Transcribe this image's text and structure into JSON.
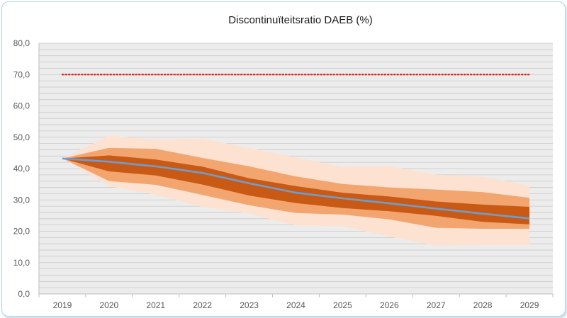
{
  "chart_data": {
    "type": "area",
    "title": "Discontinuïteitsratio DAEB (%)",
    "xlabel": "",
    "ylabel": "",
    "x": [
      "2019",
      "2020",
      "2021",
      "2022",
      "2023",
      "2024",
      "2025",
      "2026",
      "2027",
      "2028",
      "2029"
    ],
    "ylim": [
      0,
      80
    ],
    "yticks": [
      0,
      10,
      20,
      30,
      40,
      50,
      60,
      70,
      80
    ],
    "ytick_labels": [
      "0,0",
      "10,0",
      "20,0",
      "30,0",
      "40,0",
      "50,0",
      "60,0",
      "70,0",
      "80,0"
    ],
    "grid": true,
    "bands": [
      {
        "color": "#fde2d2",
        "upper": [
          43.2,
          50.5,
          49.2,
          49.6,
          46.5,
          43.6,
          40.5,
          40.8,
          38.0,
          37.4,
          34.5
        ],
        "lower": [
          43.2,
          34.4,
          31.6,
          27.8,
          25.6,
          21.8,
          21.6,
          18.3,
          15.4,
          15.6,
          15.6
        ]
      },
      {
        "color": "#f3a56f",
        "upper": [
          43.2,
          46.6,
          46.3,
          43.4,
          40.7,
          37.5,
          35.1,
          34.0,
          33.3,
          32.5,
          30.7
        ],
        "lower": [
          43.2,
          36.0,
          34.8,
          31.6,
          28.3,
          25.8,
          25.3,
          23.8,
          21.1,
          20.8,
          20.8
        ]
      },
      {
        "color": "#c85a16",
        "upper": [
          43.2,
          44.2,
          42.9,
          40.6,
          36.9,
          34.4,
          32.3,
          31.1,
          29.5,
          28.5,
          27.8
        ],
        "lower": [
          43.2,
          39.1,
          37.8,
          34.9,
          31.4,
          29.0,
          27.4,
          26.4,
          24.9,
          23.0,
          22.2
        ]
      }
    ],
    "series": [
      {
        "color": "#6d9ecf",
        "values": [
          43.2,
          42.2,
          40.7,
          38.6,
          35.3,
          32.3,
          30.5,
          28.9,
          27.2,
          25.6,
          24.1
        ]
      }
    ],
    "reference_line": {
      "value": 70,
      "color": "#e0201c",
      "style": "dotted"
    }
  }
}
